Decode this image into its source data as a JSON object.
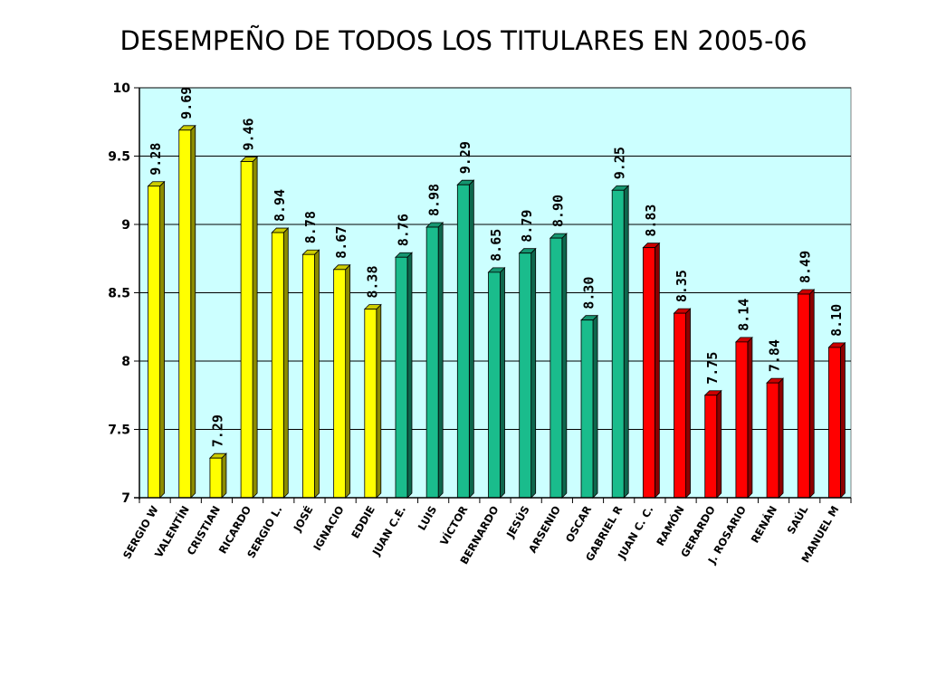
{
  "chart_data": {
    "type": "bar",
    "title": "DESEMPEÑO DE TODOS LOS TITULARES EN 2005-06",
    "xlabel": "",
    "ylabel": "",
    "ylim": [
      7,
      10
    ],
    "yticks": [
      "7",
      "7.5",
      "8",
      "8.5",
      "9",
      "9.5",
      "10"
    ],
    "grid": true,
    "categories": [
      "SERGIO W",
      "VALENTÍN",
      "CRISTIAN",
      "RICARDO",
      "SERGIO L.",
      "JOSÉ",
      "IGNACIO",
      "EDDIE",
      "JUAN C.E.",
      "LUIS",
      "VÍCTOR",
      "BERNARDO",
      "JESÚS",
      "ARSENIO",
      "OSCAR",
      "GABRIEL R",
      "JUAN C. C.",
      "RAMÓN",
      "GERARDO",
      "J. ROSARIO",
      "RENÁN",
      "SAÚL",
      "MANUEL M"
    ],
    "values": [
      9.28,
      9.69,
      7.29,
      9.46,
      8.94,
      8.78,
      8.67,
      8.38,
      8.76,
      8.98,
      9.29,
      8.65,
      8.79,
      8.9,
      8.3,
      9.25,
      8.83,
      8.35,
      7.75,
      8.14,
      7.84,
      8.49,
      8.1
    ],
    "labels": [
      "9.28",
      "9.69",
      "7.29",
      "9.46",
      "8.94",
      "8.78",
      "8.67",
      "8.38",
      "8.76",
      "8.98",
      "9.29",
      "8.65",
      "8.79",
      "8.90",
      "8.30",
      "9.25",
      "8.83",
      "8.35",
      "7.75",
      "8.14",
      "7.84",
      "8.49",
      "8.10"
    ],
    "bar_colors": [
      "#ffff00",
      "#ffff00",
      "#ffff00",
      "#ffff00",
      "#ffff00",
      "#ffff00",
      "#ffff00",
      "#ffff00",
      "#1abc8c",
      "#1abc8c",
      "#1abc8c",
      "#1abc8c",
      "#1abc8c",
      "#1abc8c",
      "#1abc8c",
      "#1abc8c",
      "#ff0000",
      "#ff0000",
      "#ff0000",
      "#ff0000",
      "#ff0000",
      "#ff0000",
      "#ff0000"
    ],
    "plot_background": "#ccffff"
  }
}
